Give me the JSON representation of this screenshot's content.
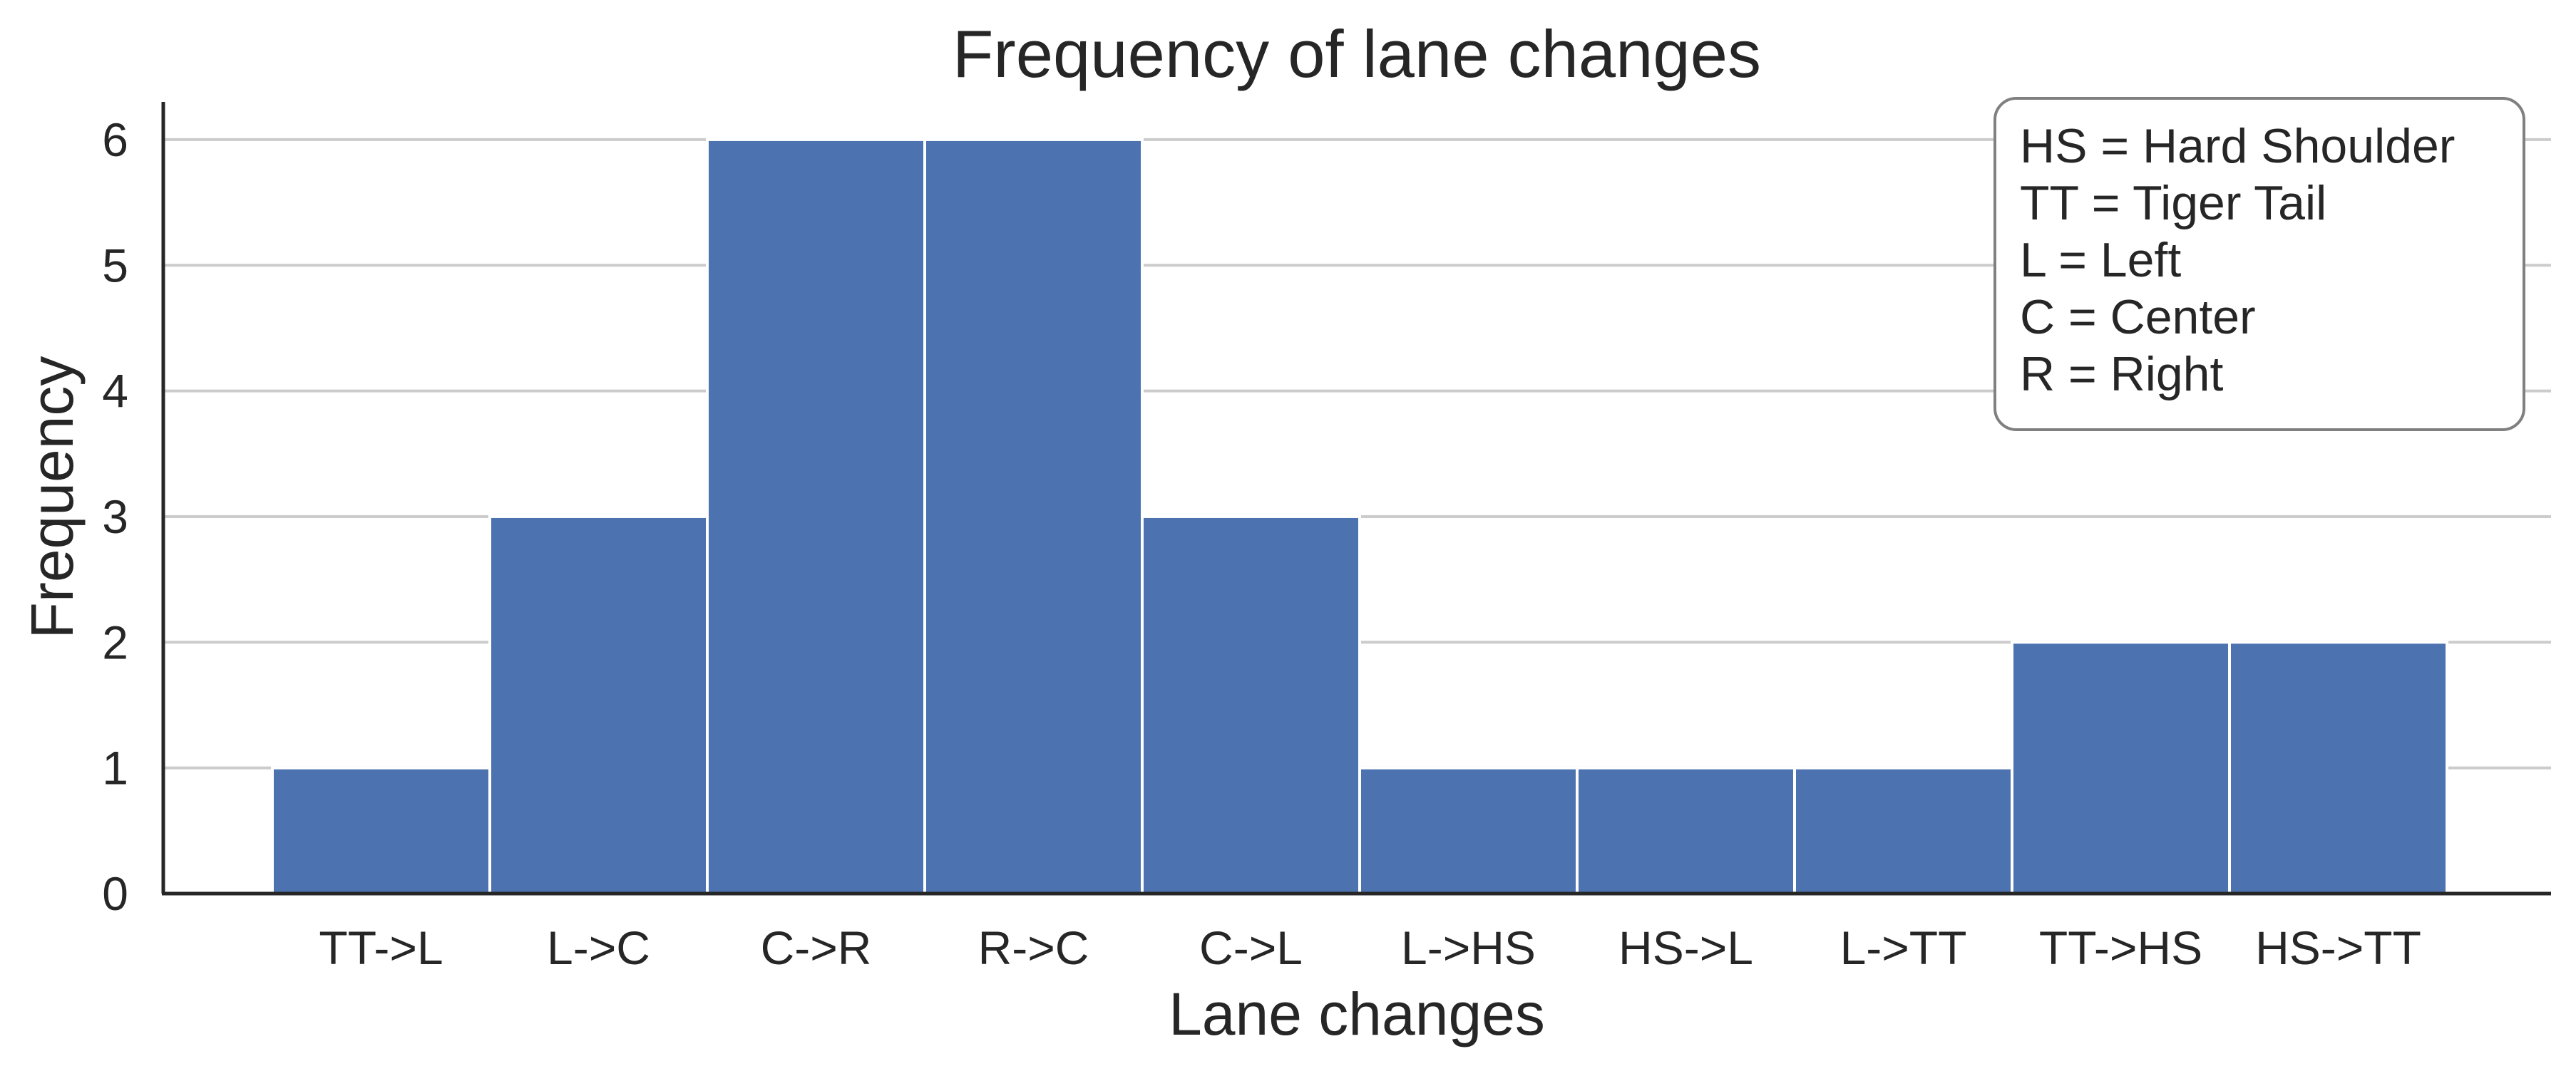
{
  "chart_data": {
    "type": "bar",
    "title": "Frequency of lane changes",
    "xlabel": "Lane changes",
    "ylabel": "Frequency",
    "categories": [
      "TT->L",
      "L->C",
      "C->R",
      "R->C",
      "C->L",
      "L->HS",
      "HS->L",
      "L->TT",
      "TT->HS",
      "HS->TT"
    ],
    "values": [
      1,
      3,
      6,
      6,
      3,
      1,
      1,
      1,
      2,
      2
    ],
    "yticks": [
      "0",
      "1",
      "2",
      "3",
      "4",
      "5",
      "6"
    ],
    "ylim": [
      0,
      6.3
    ],
    "grid": "horizontal",
    "bar_color": "#4c72b0",
    "legend_placement": "top-right",
    "legend_lines": [
      "HS = Hard Shoulder",
      "TT = Tiger Tail",
      "L = Left",
      "C = Center",
      "R = Right"
    ]
  }
}
